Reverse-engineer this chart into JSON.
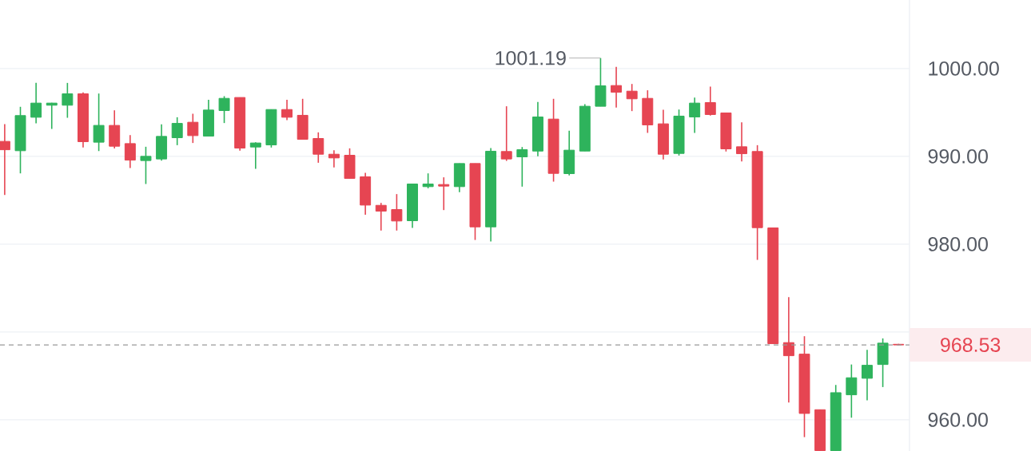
{
  "chart_data": {
    "type": "candlestick",
    "categories": [
      null,
      null,
      null,
      null,
      null,
      null,
      null,
      null,
      null,
      null,
      null,
      null,
      null,
      null,
      null,
      null,
      null,
      null,
      null,
      null,
      null,
      null,
      null,
      null,
      null,
      null,
      null,
      null,
      null,
      null,
      null,
      null,
      null,
      null,
      null,
      null,
      null,
      null,
      null,
      null,
      null,
      null,
      null,
      null,
      null,
      null,
      null,
      null,
      null,
      null,
      null,
      null,
      null,
      null,
      null,
      null,
      null,
      null
    ],
    "ohlc": [
      [
        991.7,
        993.66,
        985.61,
        990.75
      ],
      [
        990.64,
        995.64,
        988.06,
        994.64
      ],
      [
        994.45,
        998.36,
        993.75,
        996.06
      ],
      [
        995.82,
        996.1,
        993.12,
        996.06
      ],
      [
        995.82,
        998.36,
        994.39,
        997.12
      ],
      [
        997.12,
        997.27,
        991.0,
        991.67
      ],
      [
        991.61,
        997.15,
        990.6,
        993.52
      ],
      [
        993.52,
        995.24,
        990.9,
        991.15
      ],
      [
        991.45,
        992.42,
        988.66,
        989.57
      ],
      [
        989.52,
        991.09,
        986.85,
        990.0
      ],
      [
        989.7,
        993.64,
        989.52,
        992.27
      ],
      [
        992.12,
        994.45,
        991.27,
        993.75
      ],
      [
        993.88,
        994.85,
        991.52,
        992.36
      ],
      [
        992.3,
        996.45,
        992.3,
        995.27
      ],
      [
        995.21,
        996.85,
        993.79,
        996.6
      ],
      [
        996.7,
        996.7,
        990.64,
        990.94
      ],
      [
        991.06,
        991.6,
        988.57,
        991.52
      ],
      [
        991.3,
        995.33,
        991.0,
        995.33
      ],
      [
        995.33,
        996.45,
        994.12,
        994.45
      ],
      [
        994.67,
        996.55,
        991.94,
        991.94
      ],
      [
        992.03,
        992.73,
        989.27,
        990.24
      ],
      [
        990.24,
        990.7,
        988.73,
        989.82
      ],
      [
        990.12,
        990.91,
        987.48,
        987.48
      ],
      [
        987.67,
        988.12,
        983.36,
        984.45
      ],
      [
        984.42,
        984.7,
        981.55,
        983.76
      ],
      [
        983.94,
        985.7,
        981.55,
        982.64
      ],
      [
        982.67,
        986.85,
        981.85,
        986.85
      ],
      [
        986.55,
        988.06,
        986.36,
        986.85
      ],
      [
        986.79,
        987.61,
        983.88,
        986.61
      ],
      [
        986.55,
        989.18,
        985.91,
        989.18
      ],
      [
        989.18,
        989.18,
        980.48,
        981.97
      ],
      [
        981.97,
        990.94,
        980.3,
        990.58
      ],
      [
        990.55,
        995.7,
        989.48,
        989.7
      ],
      [
        989.94,
        991.06,
        986.55,
        990.76
      ],
      [
        990.6,
        996.18,
        990.0,
        994.48
      ],
      [
        994.24,
        996.55,
        987.12,
        988.06
      ],
      [
        988.03,
        992.91,
        987.82,
        990.7
      ],
      [
        990.6,
        995.94,
        990.6,
        995.7
      ],
      [
        995.7,
        1001.19,
        995.7,
        998.03
      ],
      [
        998.06,
        1000.18,
        995.55,
        997.3
      ],
      [
        997.42,
        998.24,
        995.15,
        996.55
      ],
      [
        996.6,
        997.52,
        992.67,
        993.58
      ],
      [
        993.7,
        995.3,
        989.64,
        990.24
      ],
      [
        990.33,
        995.33,
        990.09,
        994.58
      ],
      [
        994.48,
        996.7,
        992.67,
        996.06
      ],
      [
        996.12,
        997.94,
        994.64,
        994.76
      ],
      [
        994.94,
        994.94,
        990.55,
        990.85
      ],
      [
        991.09,
        993.88,
        989.42,
        990.3
      ],
      [
        990.55,
        991.27,
        978.21,
        981.88
      ],
      [
        981.85,
        981.85,
        968.67,
        968.67
      ],
      [
        968.79,
        973.97,
        961.97,
        967.3
      ],
      [
        967.48,
        969.52,
        958.03,
        960.73
      ],
      [
        961.15,
        961.15,
        956.5,
        956.5
      ],
      [
        956.5,
        963.97,
        956.5,
        963.09
      ],
      [
        962.85,
        966.3,
        960.24,
        964.79
      ],
      [
        964.73,
        967.97,
        962.21,
        966.21
      ],
      [
        966.3,
        969.27,
        963.73,
        968.73
      ],
      [
        968.6,
        968.65,
        968.5,
        968.53
      ]
    ],
    "colors": [
      "#e64552",
      "#2eb35c",
      "#2eb35c",
      "#2eb35c",
      "#2eb35c",
      "#e64552",
      "#2eb35c",
      "#e64552",
      "#e64552",
      "#2eb35c",
      "#2eb35c",
      "#2eb35c",
      "#e64552",
      "#2eb35c",
      "#2eb35c",
      "#e64552",
      "#2eb35c",
      "#2eb35c",
      "#e64552",
      "#e64552",
      "#e64552",
      "#e64552",
      "#e64552",
      "#e64552",
      "#e64552",
      "#e64552",
      "#2eb35c",
      "#2eb35c",
      "#e64552",
      "#2eb35c",
      "#e64552",
      "#2eb35c",
      "#e64552",
      "#2eb35c",
      "#2eb35c",
      "#e64552",
      "#2eb35c",
      "#2eb35c",
      "#2eb35c",
      "#e64552",
      "#e64552",
      "#e64552",
      "#e64552",
      "#2eb35c",
      "#2eb35c",
      "#e64552",
      "#e64552",
      "#e64552",
      "#e64552",
      "#e64552",
      "#e64552",
      "#e64552",
      "#e64552",
      "#2eb35c",
      "#2eb35c",
      "#2eb35c",
      "#2eb35c",
      "#e64552"
    ],
    "ylim": [
      956.45,
      1007.8
    ],
    "yticks": [
      {
        "value": 960,
        "label": "960.00"
      },
      {
        "value": 970,
        "label": null
      },
      {
        "value": 980,
        "label": "980.00"
      },
      {
        "value": 990,
        "label": "990.00"
      },
      {
        "value": 1000,
        "label": "1000.00"
      }
    ],
    "grid": "y",
    "tick_labels": "y",
    "ref_lines": [
      {
        "axis": "y",
        "value": 968.53,
        "label": "968.53",
        "color": "#999999",
        "line_style": "dashed"
      }
    ],
    "annotations": [
      "1001.19"
    ]
  }
}
